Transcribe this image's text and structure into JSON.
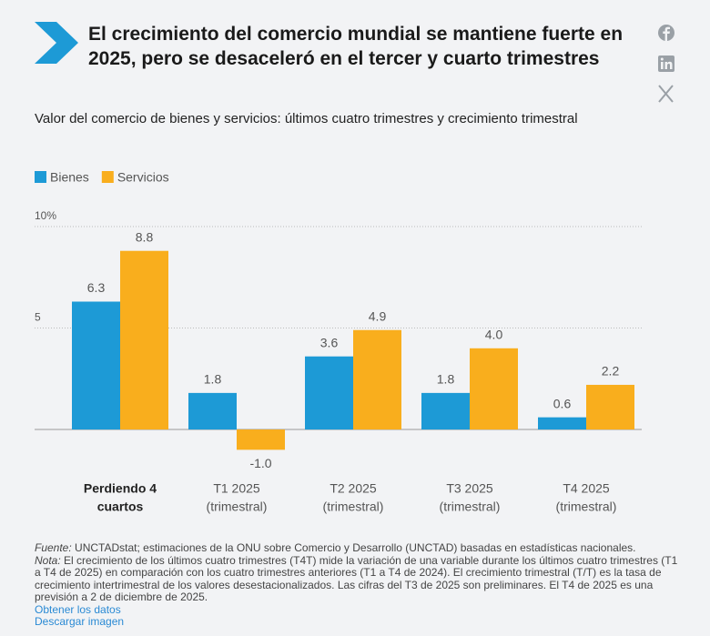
{
  "chart_data": {
    "type": "bar",
    "title": "El crecimiento del comercio mundial se mantiene fuerte en 2025, pero se desaceleró en el tercer y cuarto trimestres",
    "subtitle": "Valor del comercio de bienes y servicios: últimos cuatro trimestres y crecimiento trimestral",
    "categories": [
      [
        "Perdiendo 4",
        "cuartos"
      ],
      [
        "T1 2025",
        "(trimestral)"
      ],
      [
        "T2 2025",
        "(trimestral)"
      ],
      [
        "T3 2025",
        "(trimestral)"
      ],
      [
        "T4 2025",
        "(trimestral)"
      ]
    ],
    "series": [
      {
        "name": "Bienes",
        "color": "#1d9ad6",
        "values": [
          6.3,
          1.8,
          3.6,
          1.8,
          0.6
        ],
        "value_labels": [
          "6.3",
          "1.8",
          "3.6",
          "1.8",
          "0.6"
        ]
      },
      {
        "name": "Servicios",
        "color": "#f9ae1d",
        "values": [
          8.8,
          -1.0,
          4.9,
          4.0,
          2.2
        ],
        "value_labels": [
          "8.8",
          "-1.0",
          "4.9",
          "4.0",
          "2.2"
        ]
      }
    ],
    "ylim": [
      -1.5,
      10.5
    ],
    "yticks": [
      5,
      {
        "value": 10,
        "label": "10%"
      }
    ],
    "grid": true
  },
  "footer": {
    "source_label": "Fuente:",
    "source": "UNCTADstat; estimaciones de la ONU sobre Comercio y Desarrollo (UNCTAD) basadas en estadísticas nacionales.",
    "note_label": "Nota:",
    "note": "El crecimiento de los últimos cuatro trimestres (T4T) mide la variación de una variable durante los últimos cuatro trimestres (T1 a T4 de 2025) en comparación con los cuatro trimestres anteriores (T1 a T4 de 2024). El crecimiento trimestral (T/T) es la tasa de crecimiento intertrimestral de los valores desestacionalizados. Las cifras del T3 de 2025 son preliminares. El T4 de 2025 es una previsión a 2 de diciembre de 2025.",
    "links": [
      "Obtener los datos",
      "Descargar imagen"
    ]
  }
}
